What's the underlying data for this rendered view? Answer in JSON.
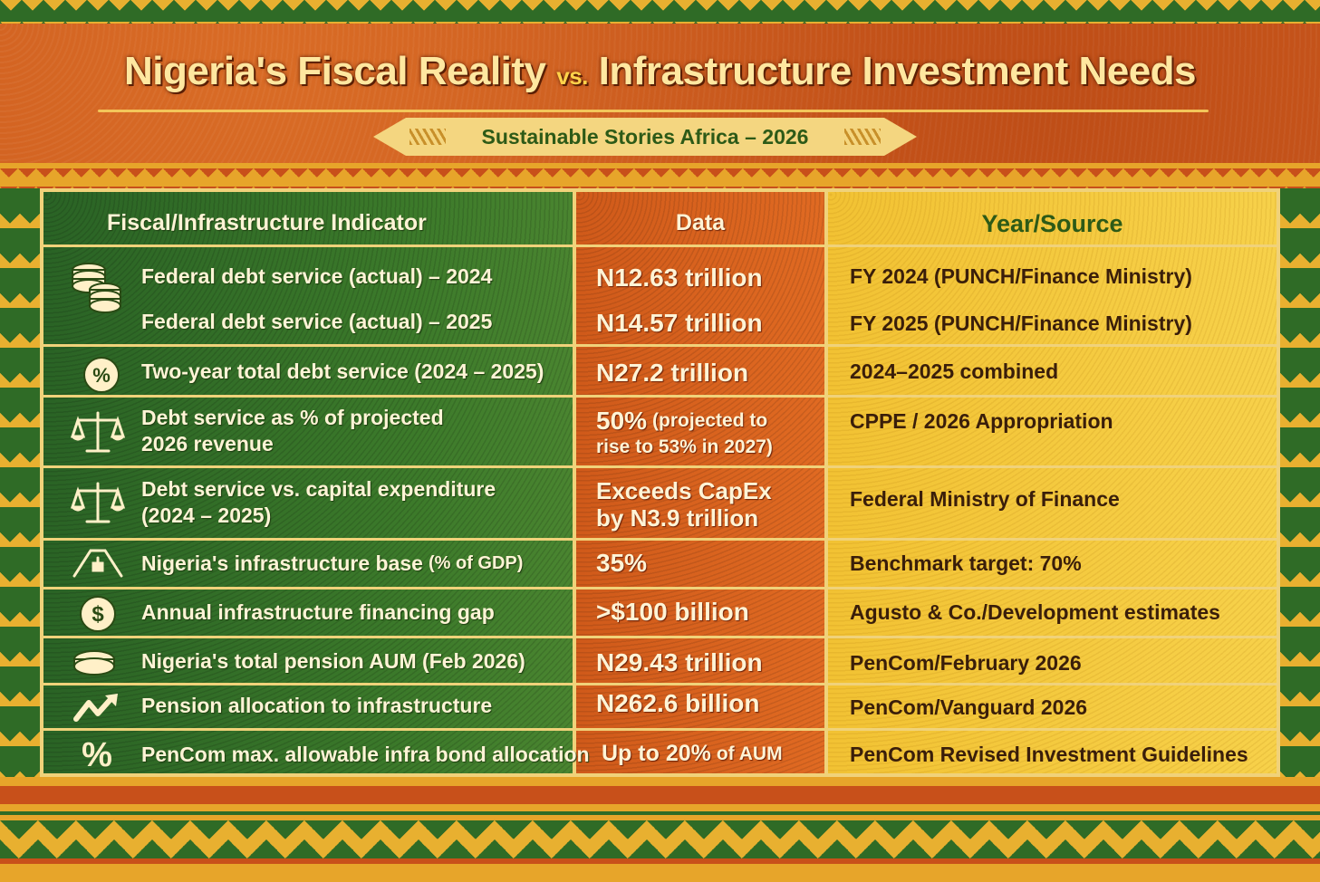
{
  "header": {
    "title_part1": "Nigeria's Fiscal Reality",
    "title_vs": "vs.",
    "title_part2": "Infrastructure Investment Needs",
    "subtitle": "Sustainable Stories Africa – 2026"
  },
  "table": {
    "columns": {
      "indicator": "Fiscal/Infrastructure Indicator",
      "data": "Data",
      "source": "Year/Source"
    },
    "rows": [
      {
        "icon": "coin-stack-icon",
        "indicator": "Federal debt service (actual) – 2024",
        "data": "N12.63 trillion",
        "source": "FY 2024  (PUNCH/Finance Ministry)"
      },
      {
        "icon": "",
        "indicator": "Federal debt service (actual) – 2025",
        "data": "N14.57 trillion",
        "source": "FY 2025  (PUNCH/Finance Ministry)"
      },
      {
        "icon": "percent-coin-icon",
        "indicator": "Two-year total debt service (2024 – 2025)",
        "data": "N27.2 trillion",
        "source": "2024–2025 combined"
      },
      {
        "icon": "balance-scale-icon",
        "indicator_line1": "Debt service as % of projected",
        "indicator_line2": "2026 revenue",
        "data_main": "50%",
        "data_note1": "(projected to",
        "data_note2": "rise to 53% in 2027)",
        "source": "CPPE / 2026 Appropriation"
      },
      {
        "icon": "balance-scale-icon",
        "indicator_line1": "Debt service vs. capital expenditure",
        "indicator_line2": "(2024 – 2025)",
        "data_line1": "Exceeds CapEx",
        "data_line2": "by N3.9 trillion",
        "source": "Federal Ministry of Finance"
      },
      {
        "icon": "road-icon",
        "indicator_main": "Nigeria's infrastructure base",
        "indicator_note": "(% of GDP)",
        "data": "35%",
        "source": "Benchmark target: 70%"
      },
      {
        "icon": "dollar-coin-icon",
        "indicator": "Annual infrastructure financing gap",
        "data": ">$100 billion",
        "source": "Agusto & Co./Development estimates"
      },
      {
        "icon": "coin-icon",
        "indicator": "Nigeria's total pension AUM (Feb 2026)",
        "data": "N29.43 trillion",
        "source": "PenCom/February 2026"
      },
      {
        "icon": "trend-up-icon",
        "indicator": "Pension allocation to infrastructure",
        "data": "N262.6 billion",
        "source": "PenCom/Vanguard 2026"
      },
      {
        "icon": "percent-icon",
        "indicator": "PenCom max. allowable infra bond allocation",
        "data_main": "Up to 20%",
        "data_note": "of AUM",
        "source": "PenCom Revised Investment Guidelines"
      }
    ]
  },
  "colors": {
    "green": "#2f6b26",
    "orange": "#d05a1a",
    "yellow": "#f2c233",
    "cream": "#fff4d6"
  }
}
